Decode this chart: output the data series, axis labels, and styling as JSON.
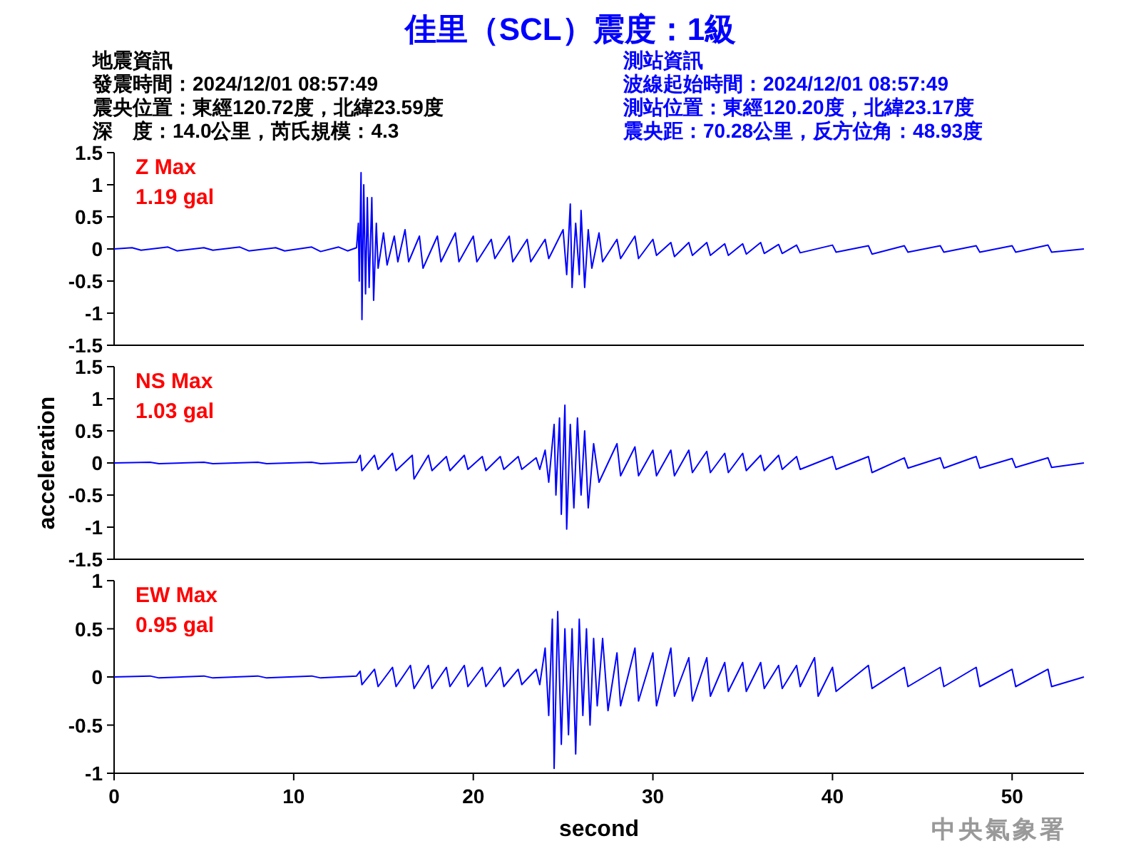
{
  "chart_data": [
    {
      "type": "other",
      "title": "佳里（SCL）震度：1級",
      "color": "#0000ff"
    },
    {
      "type": "other",
      "title": "地震資訊",
      "color": "#000000",
      "annotations": [
        "發震時間：2024/12/01 08:57:49",
        "震央位置：東經120.72度，北緯23.59度",
        "深　度：14.0公里，芮氏規模：4.3"
      ]
    },
    {
      "type": "other",
      "title": "測站資訊",
      "color": "#0000ff",
      "annotations": [
        "波線起始時間：2024/12/01 08:57:49",
        "測站位置：東經120.20度，北緯23.17度",
        "震央距：70.28公里，反方位角：48.93度"
      ]
    },
    {
      "type": "line",
      "xlim": [
        0,
        54
      ],
      "ylim": [
        -1.5,
        1.5
      ],
      "yticks": [
        -1.5,
        -1,
        -0.5,
        0,
        0.5,
        1,
        1.5
      ],
      "tick_labels": "y",
      "annotations": [
        "Z Max",
        "1.19 gal"
      ],
      "series": [
        {
          "color": "#0000ff",
          "x": [
            0,
            1,
            1.5,
            3,
            3.5,
            5,
            5.5,
            7,
            7.5,
            9,
            9.5,
            11,
            11.5,
            12.5,
            13,
            13.5,
            13.6,
            13.65,
            13.75,
            13.8,
            13.9,
            14,
            14.1,
            14.2,
            14.35,
            14.45,
            14.6,
            14.7,
            15,
            15.2,
            15.6,
            15.8,
            16.2,
            16.4,
            17,
            17.2,
            18,
            18.2,
            19,
            19.2,
            20,
            20.2,
            21,
            21.2,
            22,
            22.2,
            23,
            23.2,
            24,
            24.2,
            25,
            25.2,
            25.4,
            25.5,
            25.7,
            25.9,
            26,
            26.2,
            26.4,
            26.6,
            27,
            27.2,
            28,
            28.2,
            29,
            29.2,
            30,
            30.2,
            31,
            31.2,
            32,
            32.2,
            33,
            33.2,
            34,
            34.2,
            35,
            35.2,
            36,
            36.2,
            37,
            37.2,
            38,
            38.2,
            40,
            40.2,
            42,
            42.2,
            44,
            44.2,
            46,
            46.2,
            48,
            48.2,
            50,
            50.2,
            52,
            52.2,
            54
          ],
          "values": [
            0,
            0.02,
            -0.02,
            0.03,
            -0.03,
            0.02,
            -0.02,
            0.03,
            -0.03,
            0.02,
            -0.03,
            0.03,
            -0.04,
            0.03,
            -0.03,
            0.02,
            0.4,
            -0.5,
            1.19,
            -1.1,
            1.0,
            -0.7,
            0.8,
            -0.6,
            0.8,
            -0.8,
            0.4,
            -0.3,
            0.25,
            -0.25,
            0.2,
            -0.2,
            0.3,
            -0.2,
            0.2,
            -0.3,
            0.2,
            -0.2,
            0.25,
            -0.2,
            0.2,
            -0.2,
            0.15,
            -0.15,
            0.2,
            -0.2,
            0.15,
            -0.2,
            0.15,
            -0.15,
            0.3,
            -0.4,
            0.7,
            -0.6,
            0.4,
            -0.4,
            0.6,
            -0.6,
            0.3,
            -0.3,
            0.25,
            -0.2,
            0.15,
            -0.15,
            0.2,
            -0.15,
            0.15,
            -0.1,
            0.1,
            -0.12,
            0.1,
            -0.1,
            0.1,
            -0.1,
            0.08,
            -0.1,
            0.08,
            -0.08,
            0.1,
            -0.07,
            0.07,
            -0.07,
            0.06,
            -0.06,
            0.06,
            -0.05,
            0.05,
            -0.08,
            0.05,
            -0.05,
            0.05,
            -0.05,
            0.05,
            -0.05,
            0.05,
            -0.05,
            0.06,
            -0.05,
            0
          ]
        }
      ]
    },
    {
      "type": "line",
      "xlim": [
        0,
        54
      ],
      "ylim": [
        -1.5,
        1.5
      ],
      "yticks": [
        -1.5,
        -1,
        -0.5,
        0,
        0.5,
        1,
        1.5
      ],
      "tick_labels": "y",
      "ylabel": "acceleration",
      "annotations": [
        "NS Max",
        "1.03 gal"
      ],
      "series": [
        {
          "color": "#0000ff",
          "x": [
            0,
            2,
            2.5,
            5,
            5.5,
            8,
            8.5,
            11,
            11.5,
            13.5,
            13.7,
            13.8,
            14.5,
            14.7,
            15.5,
            15.7,
            16.6,
            16.7,
            17.5,
            17.7,
            18.5,
            18.7,
            19.5,
            19.7,
            20.5,
            20.7,
            21.5,
            21.7,
            22.5,
            22.7,
            23.5,
            23.7,
            24,
            24.2,
            24.5,
            24.6,
            24.8,
            24.9,
            25.1,
            25.2,
            25.4,
            25.6,
            25.8,
            26,
            26.2,
            26.4,
            26.7,
            27,
            28,
            28.2,
            29,
            29.2,
            30,
            30.2,
            31,
            31.2,
            32,
            32.2,
            33,
            33.2,
            34,
            34.2,
            35,
            35.2,
            36,
            36.2,
            37,
            37.2,
            38,
            38.2,
            40,
            40.2,
            42,
            42.2,
            44,
            44.2,
            46,
            46.2,
            48,
            48.2,
            50,
            50.2,
            52,
            52.2,
            54
          ],
          "values": [
            0,
            0.01,
            -0.01,
            0.01,
            -0.01,
            0.01,
            -0.01,
            0.01,
            -0.01,
            0.01,
            0.12,
            -0.12,
            0.12,
            -0.1,
            0.15,
            -0.12,
            0.12,
            -0.25,
            0.12,
            -0.12,
            0.1,
            -0.12,
            0.12,
            -0.1,
            0.1,
            -0.12,
            0.1,
            -0.1,
            0.1,
            -0.1,
            0.08,
            -0.1,
            0.2,
            -0.3,
            0.6,
            -0.5,
            0.7,
            -0.8,
            0.9,
            -1.03,
            0.6,
            -0.7,
            0.7,
            -0.5,
            0.5,
            -0.7,
            0.3,
            -0.3,
            0.3,
            -0.2,
            0.25,
            -0.2,
            0.2,
            -0.2,
            0.2,
            -0.2,
            0.2,
            -0.15,
            0.18,
            -0.15,
            0.15,
            -0.15,
            0.15,
            -0.12,
            0.12,
            -0.12,
            0.12,
            -0.1,
            0.1,
            -0.1,
            0.1,
            -0.1,
            0.1,
            -0.15,
            0.08,
            -0.08,
            0.08,
            -0.08,
            0.1,
            -0.08,
            0.07,
            -0.07,
            0.08,
            -0.07,
            0
          ]
        }
      ]
    },
    {
      "type": "line",
      "xlim": [
        0,
        54
      ],
      "ylim": [
        -1,
        1
      ],
      "yticks": [
        -1,
        -0.5,
        0,
        0.5,
        1
      ],
      "xticks": [
        0,
        10,
        20,
        30,
        40,
        50
      ],
      "xlabel": "second",
      "annotations": [
        "EW Max",
        "0.95 gal"
      ],
      "series": [
        {
          "color": "#0000ff",
          "x": [
            0,
            2,
            2.5,
            5,
            5.5,
            8,
            8.5,
            11,
            11.5,
            13.5,
            13.7,
            13.8,
            14.5,
            14.7,
            15.5,
            15.7,
            16.5,
            16.7,
            17.5,
            17.7,
            18.5,
            18.7,
            19.5,
            19.7,
            20.5,
            20.7,
            21.5,
            21.7,
            22.5,
            22.7,
            23.5,
            23.7,
            24,
            24.2,
            24.4,
            24.5,
            24.7,
            24.9,
            25.1,
            25.3,
            25.5,
            25.7,
            25.9,
            26.1,
            26.3,
            26.5,
            26.7,
            26.9,
            27.2,
            27.5,
            28,
            28.2,
            29,
            29.2,
            30,
            30.2,
            31,
            31.2,
            32,
            32.2,
            33,
            33.2,
            34,
            34.2,
            35,
            35.2,
            36,
            36.2,
            37,
            37.2,
            38,
            38.2,
            39,
            39.2,
            40,
            40.2,
            42,
            42.2,
            44,
            44.2,
            46,
            46.2,
            48,
            48.2,
            50,
            50.2,
            52,
            52.2,
            54
          ],
          "values": [
            0,
            0.01,
            -0.01,
            0.01,
            -0.01,
            0.01,
            -0.01,
            0.01,
            -0.01,
            0.01,
            0.06,
            -0.08,
            0.08,
            -0.1,
            0.1,
            -0.1,
            0.12,
            -0.12,
            0.12,
            -0.12,
            0.1,
            -0.1,
            0.12,
            -0.1,
            0.1,
            -0.1,
            0.1,
            -0.1,
            0.08,
            -0.08,
            0.08,
            -0.08,
            0.3,
            -0.4,
            0.6,
            -0.95,
            0.68,
            -0.7,
            0.5,
            -0.6,
            0.5,
            -0.8,
            0.6,
            -0.4,
            0.5,
            -0.5,
            0.4,
            -0.3,
            0.4,
            -0.35,
            0.25,
            -0.3,
            0.3,
            -0.25,
            0.25,
            -0.3,
            0.3,
            -0.2,
            0.2,
            -0.25,
            0.2,
            -0.2,
            0.15,
            -0.15,
            0.15,
            -0.15,
            0.15,
            -0.12,
            0.12,
            -0.12,
            0.12,
            -0.1,
            0.2,
            -0.2,
            0.1,
            -0.15,
            0.12,
            -0.12,
            0.1,
            -0.1,
            0.1,
            -0.1,
            0.1,
            -0.1,
            0.08,
            -0.1,
            0.08,
            -0.1,
            0
          ]
        }
      ]
    },
    {
      "type": "other",
      "color": "#999999",
      "annotations": [
        "中央氣象署"
      ]
    }
  ]
}
